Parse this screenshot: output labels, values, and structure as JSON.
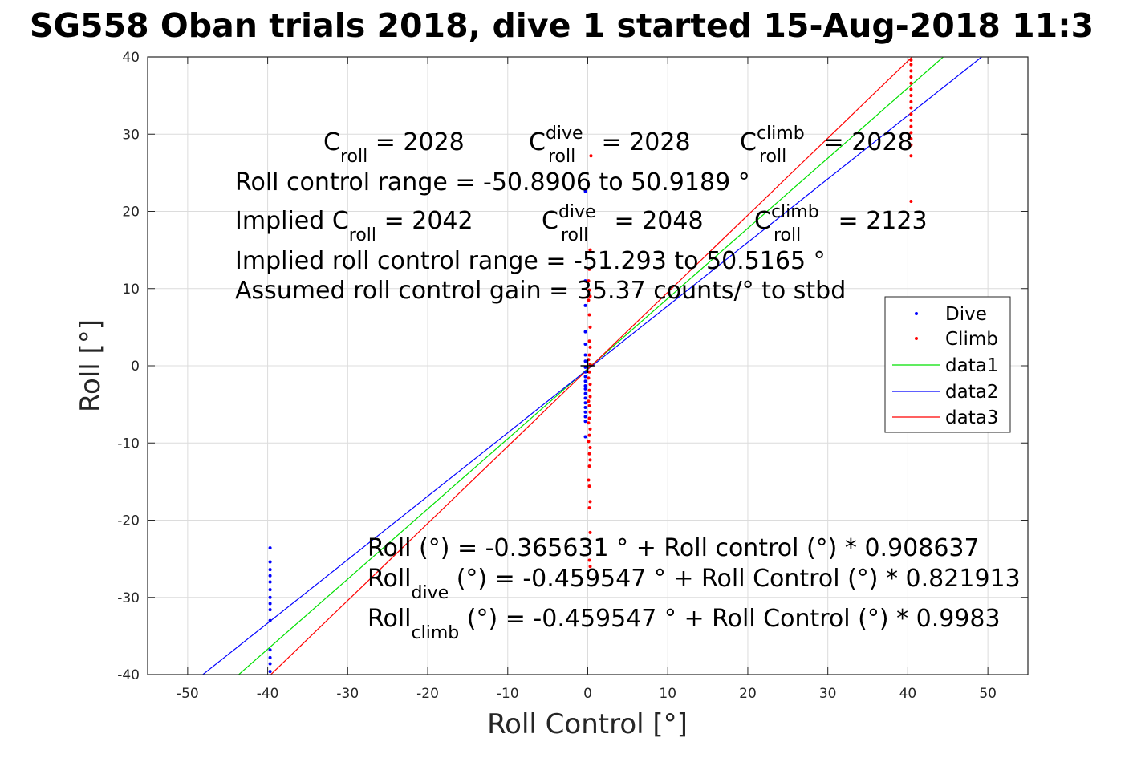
{
  "chart_data": {
    "type": "scatter",
    "title": "SG558 Oban trials 2018, dive 1 started 15-Aug-2018 11:3",
    "xlabel": "Roll Control [°]",
    "ylabel": "Roll [°]",
    "xlim": [
      -55,
      55
    ],
    "ylim": [
      -40,
      40
    ],
    "xticks": [
      -50,
      -40,
      -30,
      -20,
      -10,
      0,
      10,
      20,
      30,
      40,
      50
    ],
    "yticks": [
      -40,
      -30,
      -20,
      -10,
      0,
      10,
      20,
      30,
      40
    ],
    "grid": true,
    "legend_position": "right",
    "legend": [
      "Dive",
      "Climb",
      "data1",
      "data2",
      "data3"
    ],
    "series": [
      {
        "name": "Dive",
        "kind": "points",
        "color": "#0000ff",
        "points": [
          [
            -39.7,
            -23.6
          ],
          [
            -39.7,
            -25.4
          ],
          [
            -39.7,
            -26.4
          ],
          [
            -39.7,
            -27.2
          ],
          [
            -39.7,
            -28.0
          ],
          [
            -39.7,
            -29.0
          ],
          [
            -39.7,
            -30.0
          ],
          [
            -39.7,
            -30.8
          ],
          [
            -39.7,
            -31.6
          ],
          [
            -39.7,
            -33.0
          ],
          [
            -39.7,
            -36.8
          ],
          [
            -39.7,
            -37.8
          ],
          [
            -39.7,
            -38.6
          ],
          [
            -39.7,
            -39.6
          ],
          [
            -0.3,
            22.6
          ],
          [
            -0.3,
            11.0
          ],
          [
            -0.3,
            7.8
          ],
          [
            -0.3,
            4.4
          ],
          [
            -0.3,
            2.8
          ],
          [
            -0.3,
            1.4
          ],
          [
            -0.3,
            0.6
          ],
          [
            -0.3,
            -0.2
          ],
          [
            -0.3,
            -0.8
          ],
          [
            -0.3,
            -1.4
          ],
          [
            -0.3,
            -2.0
          ],
          [
            -0.3,
            -2.6
          ],
          [
            -0.3,
            -3.0
          ],
          [
            -0.3,
            -3.6
          ],
          [
            -0.3,
            -4.2
          ],
          [
            -0.3,
            -4.8
          ],
          [
            -0.3,
            -5.4
          ],
          [
            -0.3,
            -6.0
          ],
          [
            -0.3,
            -6.6
          ],
          [
            -0.3,
            -7.2
          ],
          [
            -0.3,
            -9.2
          ]
        ]
      },
      {
        "name": "Climb",
        "kind": "points",
        "color": "#ff0000",
        "points": [
          [
            0.4,
            27.2
          ],
          [
            0.3,
            15.0
          ],
          [
            0.2,
            12.5
          ],
          [
            0.1,
            11.0
          ],
          [
            0.2,
            9.8
          ],
          [
            0.3,
            9.0
          ],
          [
            0.1,
            8.5
          ],
          [
            0.2,
            6.6
          ],
          [
            0.3,
            5.0
          ],
          [
            0.2,
            3.2
          ],
          [
            0.3,
            2.4
          ],
          [
            0.2,
            1.4
          ],
          [
            0.1,
            0.8
          ],
          [
            0.3,
            0.2
          ],
          [
            0.2,
            -0.8
          ],
          [
            0.1,
            -1.6
          ],
          [
            0.3,
            -2.4
          ],
          [
            0.2,
            -3.2
          ],
          [
            0.3,
            -4.0
          ],
          [
            0.1,
            -4.6
          ],
          [
            0.2,
            -5.2
          ],
          [
            0.3,
            -6.0
          ],
          [
            0.2,
            -6.8
          ],
          [
            0.1,
            -7.4
          ],
          [
            0.3,
            -8.2
          ],
          [
            0.2,
            -9.0
          ],
          [
            0.1,
            -9.8
          ],
          [
            0.3,
            -10.6
          ],
          [
            0.2,
            -11.4
          ],
          [
            0.3,
            -12.2
          ],
          [
            0.2,
            -13.0
          ],
          [
            0.1,
            -14.8
          ],
          [
            0.2,
            -15.6
          ],
          [
            0.3,
            -17.6
          ],
          [
            0.2,
            -18.4
          ],
          [
            0.3,
            -21.6
          ],
          [
            0.2,
            -25.2
          ],
          [
            0.3,
            -26.0
          ],
          [
            40.4,
            39.6
          ],
          [
            40.4,
            39.0
          ],
          [
            40.4,
            38.2
          ],
          [
            40.4,
            37.4
          ],
          [
            40.4,
            36.6
          ],
          [
            40.4,
            35.8
          ],
          [
            40.4,
            35.0
          ],
          [
            40.4,
            34.2
          ],
          [
            40.4,
            33.4
          ],
          [
            40.4,
            32.6
          ],
          [
            40.4,
            31.8
          ],
          [
            40.4,
            31.0
          ],
          [
            40.4,
            30.2
          ],
          [
            40.4,
            29.4
          ],
          [
            40.4,
            28.6
          ],
          [
            40.4,
            27.2
          ],
          [
            40.4,
            21.3
          ]
        ]
      },
      {
        "name": "data1",
        "kind": "line",
        "color": "#00e000",
        "intercept": -0.365631,
        "slope": 0.908637
      },
      {
        "name": "data2",
        "kind": "line",
        "color": "#0000ff",
        "intercept": -0.459547,
        "slope": 0.821913
      },
      {
        "name": "data3",
        "kind": "line",
        "color": "#ff0000",
        "intercept": -0.459547,
        "slope": 0.9983
      }
    ],
    "origin_marker": [
      0,
      0
    ]
  },
  "annotations": {
    "croll_base": "C",
    "croll_sub": "roll",
    "croll_val": " = 2028",
    "cdive_base": "C",
    "cdive_sup": "dive",
    "cdive_sub": "roll",
    "cdive_val": " = 2028",
    "cclimb_base": "C",
    "cclimb_sup": "climb",
    "cclimb_sub": "roll",
    "cclimb_val": " = 2028",
    "range": "Roll control range = -50.8906 to 50.9189 °",
    "implied_base": "Implied C",
    "implied_sub": "roll",
    "implied_val": " = 2042",
    "icdive_base": "C",
    "icdive_sup": "dive",
    "icdive_sub": "roll",
    "icdive_val": " = 2048",
    "icclimb_base": "C",
    "icclimb_sup": "climb",
    "icclimb_sub": "roll",
    "icclimb_val": " = 2123",
    "implied_range": "Implied roll control range = -51.293 to 50.5165 °",
    "gain": "Assumed roll control gain = 35.37 counts/° to stbd",
    "fit_all": "Roll (°) = -0.365631 ° + Roll control (°) * 0.908637",
    "fit_dive_base": "Roll",
    "fit_dive_sub": "dive",
    "fit_dive_rest": " (°) = -0.459547 ° + Roll Control (°) * 0.821913",
    "fit_climb_base": "Roll",
    "fit_climb_sub": "climb",
    "fit_climb_rest": " (°) = -0.459547 ° + Roll Control (°) * 0.9983"
  }
}
